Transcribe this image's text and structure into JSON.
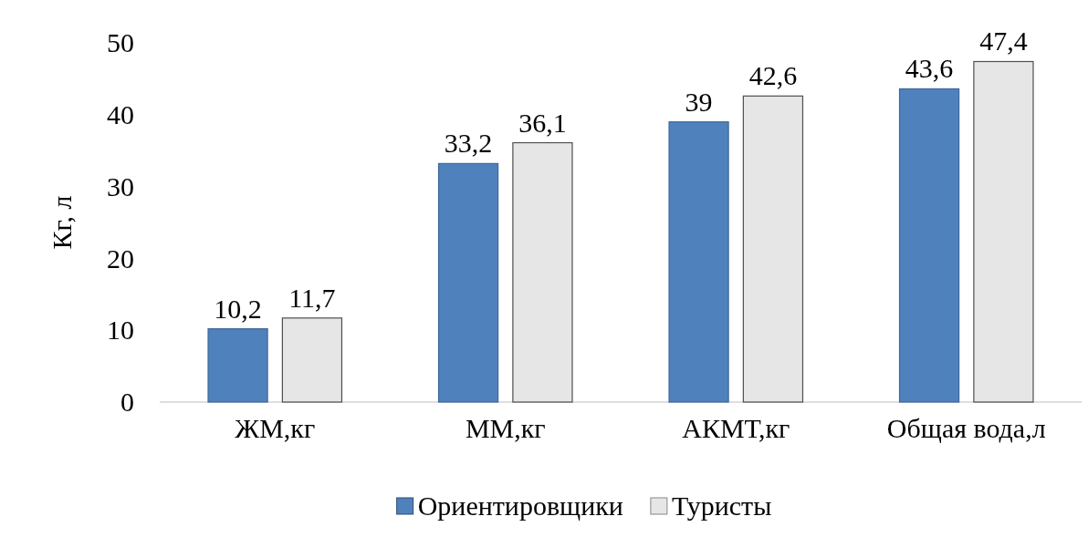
{
  "chart_data": {
    "type": "bar",
    "ylabel": "Кг, л",
    "categories": [
      "ЖМ,кг",
      "ММ,кг",
      "АКМТ,кг",
      "Общая вода,л"
    ],
    "series": [
      {
        "name": "Ориентировщики",
        "color": "#4f81bd",
        "values": [
          10.2,
          33.2,
          39,
          43.6
        ],
        "value_labels": [
          "10,2",
          "33,2",
          "39",
          "43,6"
        ]
      },
      {
        "name": "Туристы",
        "color": "#e6e6e6",
        "values": [
          11.7,
          36.1,
          42.6,
          47.4
        ],
        "value_labels": [
          "11,7",
          "36,1",
          "42,6",
          "47,4"
        ]
      }
    ],
    "ylim": [
      0,
      50
    ],
    "yticks": [
      0,
      10,
      20,
      30,
      40,
      50
    ],
    "grid": false,
    "legend": "bottom"
  }
}
